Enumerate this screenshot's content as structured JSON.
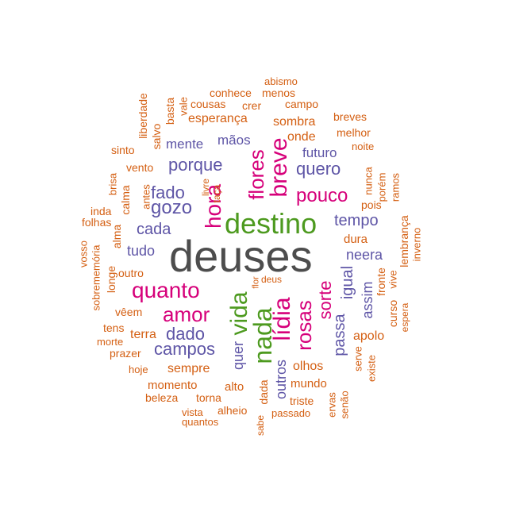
{
  "colors": {
    "c1": "#4d4d4d",
    "c2": "#4d9a1f",
    "c3": "#d6007a",
    "c4": "#5e55a6",
    "c5": "#d45f12"
  },
  "words": [
    {
      "text": "deuses",
      "color": "c1"
    },
    {
      "text": "destino",
      "color": "c2"
    },
    {
      "text": "vida",
      "color": "c2"
    },
    {
      "text": "nada",
      "color": "c2"
    },
    {
      "text": "hora",
      "color": "c3"
    },
    {
      "text": "flores",
      "color": "c3"
    },
    {
      "text": "breve",
      "color": "c3"
    },
    {
      "text": "pouco",
      "color": "c3"
    },
    {
      "text": "quanto",
      "color": "c3"
    },
    {
      "text": "amor",
      "color": "c3"
    },
    {
      "text": "lídia",
      "color": "c3"
    },
    {
      "text": "rosas",
      "color": "c3"
    },
    {
      "text": "sorte",
      "color": "c3"
    },
    {
      "text": "porque",
      "color": "c4"
    },
    {
      "text": "quero",
      "color": "c4"
    },
    {
      "text": "fado",
      "color": "c4"
    },
    {
      "text": "gozo",
      "color": "c4"
    },
    {
      "text": "tempo",
      "color": "c4"
    },
    {
      "text": "cada",
      "color": "c4"
    },
    {
      "text": "tudo",
      "color": "c4"
    },
    {
      "text": "neera",
      "color": "c4"
    },
    {
      "text": "dado",
      "color": "c4"
    },
    {
      "text": "campos",
      "color": "c4"
    },
    {
      "text": "igual",
      "color": "c4"
    },
    {
      "text": "passa",
      "color": "c4"
    },
    {
      "text": "assim",
      "color": "c4"
    },
    {
      "text": "quer",
      "color": "c4"
    },
    {
      "text": "outros",
      "color": "c4"
    },
    {
      "text": "mente",
      "color": "c4"
    },
    {
      "text": "mãos",
      "color": "c4"
    },
    {
      "text": "futuro",
      "color": "c4"
    },
    {
      "text": "abismo",
      "color": "c5"
    },
    {
      "text": "conhece",
      "color": "c5"
    },
    {
      "text": "menos",
      "color": "c5"
    },
    {
      "text": "liberdade",
      "color": "c5"
    },
    {
      "text": "basta",
      "color": "c5"
    },
    {
      "text": "vale",
      "color": "c5"
    },
    {
      "text": "cousas",
      "color": "c5"
    },
    {
      "text": "crer",
      "color": "c5"
    },
    {
      "text": "campo",
      "color": "c5"
    },
    {
      "text": "esperança",
      "color": "c5"
    },
    {
      "text": "salvo",
      "color": "c5"
    },
    {
      "text": "sombra",
      "color": "c5"
    },
    {
      "text": "breves",
      "color": "c5"
    },
    {
      "text": "melhor",
      "color": "c5"
    },
    {
      "text": "sinto",
      "color": "c5"
    },
    {
      "text": "onde",
      "color": "c5"
    },
    {
      "text": "noite",
      "color": "c5"
    },
    {
      "text": "vento",
      "color": "c5"
    },
    {
      "text": "brisa",
      "color": "c5"
    },
    {
      "text": "antes",
      "color": "c5"
    },
    {
      "text": "livre",
      "color": "c5"
    },
    {
      "text": "taça",
      "color": "c5"
    },
    {
      "text": "nunca",
      "color": "c5"
    },
    {
      "text": "porém",
      "color": "c5"
    },
    {
      "text": "ramos",
      "color": "c5"
    },
    {
      "text": "calma",
      "color": "c5"
    },
    {
      "text": "inda",
      "color": "c5"
    },
    {
      "text": "folhas",
      "color": "c5"
    },
    {
      "text": "pois",
      "color": "c5"
    },
    {
      "text": "alma",
      "color": "c5"
    },
    {
      "text": "dura",
      "color": "c5"
    },
    {
      "text": "lembrança",
      "color": "c5"
    },
    {
      "text": "inverno",
      "color": "c5"
    },
    {
      "text": "vosso",
      "color": "c5"
    },
    {
      "text": "sobrememória",
      "color": "c5"
    },
    {
      "text": "longe",
      "color": "c5"
    },
    {
      "text": "outro",
      "color": "c5"
    },
    {
      "text": "flor",
      "color": "c5"
    },
    {
      "text": "deus",
      "color": "c5"
    },
    {
      "text": "fronte",
      "color": "c5"
    },
    {
      "text": "vive",
      "color": "c5"
    },
    {
      "text": "vêem",
      "color": "c5"
    },
    {
      "text": "curso",
      "color": "c5"
    },
    {
      "text": "espera",
      "color": "c5"
    },
    {
      "text": "tens",
      "color": "c5"
    },
    {
      "text": "terra",
      "color": "c5"
    },
    {
      "text": "morte",
      "color": "c5"
    },
    {
      "text": "prazer",
      "color": "c5"
    },
    {
      "text": "apolo",
      "color": "c5"
    },
    {
      "text": "hoje",
      "color": "c5"
    },
    {
      "text": "sempre",
      "color": "c5"
    },
    {
      "text": "olhos",
      "color": "c5"
    },
    {
      "text": "serve",
      "color": "c5"
    },
    {
      "text": "existe",
      "color": "c5"
    },
    {
      "text": "momento",
      "color": "c5"
    },
    {
      "text": "alto",
      "color": "c5"
    },
    {
      "text": "mundo",
      "color": "c5"
    },
    {
      "text": "beleza",
      "color": "c5"
    },
    {
      "text": "torna",
      "color": "c5"
    },
    {
      "text": "dada",
      "color": "c5"
    },
    {
      "text": "triste",
      "color": "c5"
    },
    {
      "text": "ervas",
      "color": "c5"
    },
    {
      "text": "senão",
      "color": "c5"
    },
    {
      "text": "vista",
      "color": "c5"
    },
    {
      "text": "alheio",
      "color": "c5"
    },
    {
      "text": "sabe",
      "color": "c5"
    },
    {
      "text": "passado",
      "color": "c5"
    },
    {
      "text": "quantos",
      "color": "c5"
    }
  ]
}
